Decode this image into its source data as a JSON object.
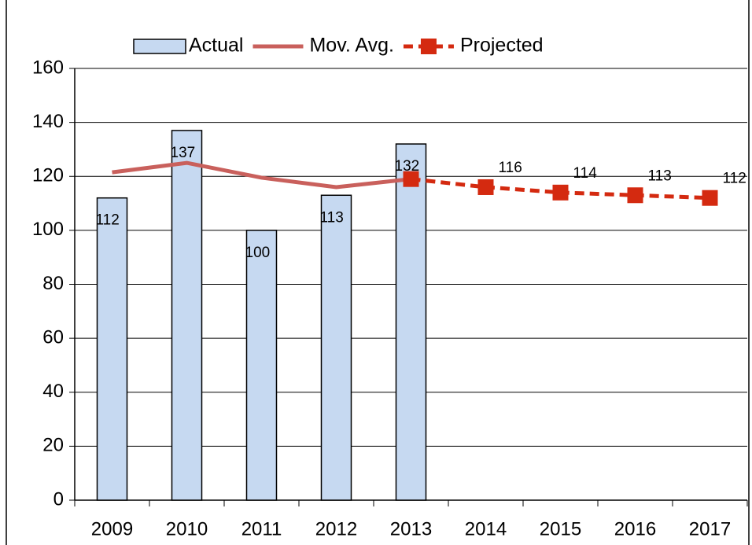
{
  "chart_data": {
    "type": "combo",
    "categories": [
      "2009",
      "2010",
      "2011",
      "2012",
      "2013",
      "2014",
      "2015",
      "2016",
      "2017"
    ],
    "series": [
      {
        "name": "Actual",
        "type": "bar",
        "color": "#c6d9f1",
        "data_labels": true,
        "values": [
          112,
          137,
          100,
          113,
          132,
          null,
          null,
          null,
          null
        ]
      },
      {
        "name": "Mov. Avg.",
        "type": "line",
        "color": "#c9605c",
        "dashed": false,
        "markers": false,
        "values": [
          121.5,
          125,
          119.5,
          116,
          119,
          null,
          null,
          null,
          null
        ]
      },
      {
        "name": "Projected",
        "type": "line",
        "color": "#d42a10",
        "dashed": true,
        "markers": true,
        "values": [
          null,
          null,
          null,
          null,
          119,
          116,
          114,
          113,
          112
        ],
        "value_labels": [
          null,
          null,
          null,
          null,
          null,
          "116",
          "114",
          "113",
          "112"
        ]
      }
    ],
    "ylim": [
      0,
      160
    ],
    "yticks": [
      0,
      20,
      40,
      60,
      80,
      100,
      120,
      140,
      160
    ],
    "grid": true,
    "legend": "top"
  }
}
